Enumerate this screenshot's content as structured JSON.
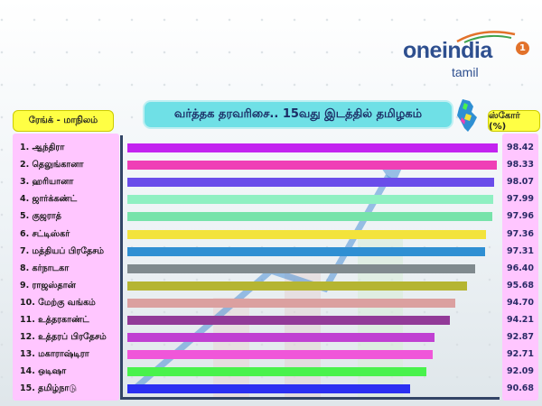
{
  "brand": {
    "name": "oneindia",
    "sub": "tamil",
    "badge": "1"
  },
  "header": {
    "title": "வர்த்தக தரவரிசை.. 15வது இடத்தில் தமிழகம்",
    "left_col": "ரேங்க் - மாநிலம்",
    "right_col": "ஸ்கோர் (%)"
  },
  "chart_data": {
    "type": "bar",
    "orientation": "horizontal",
    "title": "வர்த்தக தரவரிசை.. 15வது இடத்தில் தமிழகம்",
    "xlabel": "ஸ்கோர் (%)",
    "ylabel": "ரேங்க் - மாநிலம்",
    "categories": [
      "1. ஆந்திரா",
      "2. தெலுங்கானா",
      "3. ஹரியானா",
      "4. ஜார்க்கண்ட்",
      "5. குஜராத்",
      "6. சட்டிஸ்கர்",
      "7. மத்தியப் பிரதேசம்",
      "8. கர்நாடகா",
      "9. ராஜஸ்தான்",
      "10. மேற்கு வங்கம்",
      "11. உத்தரகாண்ட்",
      "12. உத்தரப் பிரதேசம்",
      "13. மகாராஷ்டிரா",
      "14. ஒடிஷா",
      "15. தமிழ்நாடு"
    ],
    "values": [
      98.42,
      98.33,
      98.07,
      97.99,
      97.96,
      97.36,
      97.31,
      96.4,
      95.68,
      94.7,
      94.21,
      92.87,
      92.71,
      92.09,
      90.68
    ],
    "labels": [
      "98.42",
      "98.33",
      "98.07",
      "97.99",
      "97.96",
      "97.36",
      "97.31",
      "96.40",
      "95.68",
      "94.70",
      "94.21",
      "92.87",
      "92.71",
      "92.09",
      "90.68"
    ],
    "colors": [
      "#c323f0",
      "#ef3fb6",
      "#6a4dea",
      "#8ff0c2",
      "#77e3aa",
      "#f3e33c",
      "#2f8fd3",
      "#808a8e",
      "#b5b532",
      "#dba0a0",
      "#923a98",
      "#c040d2",
      "#f056d9",
      "#49f24c",
      "#2b2ff2"
    ],
    "grid": false,
    "legend": "none"
  }
}
